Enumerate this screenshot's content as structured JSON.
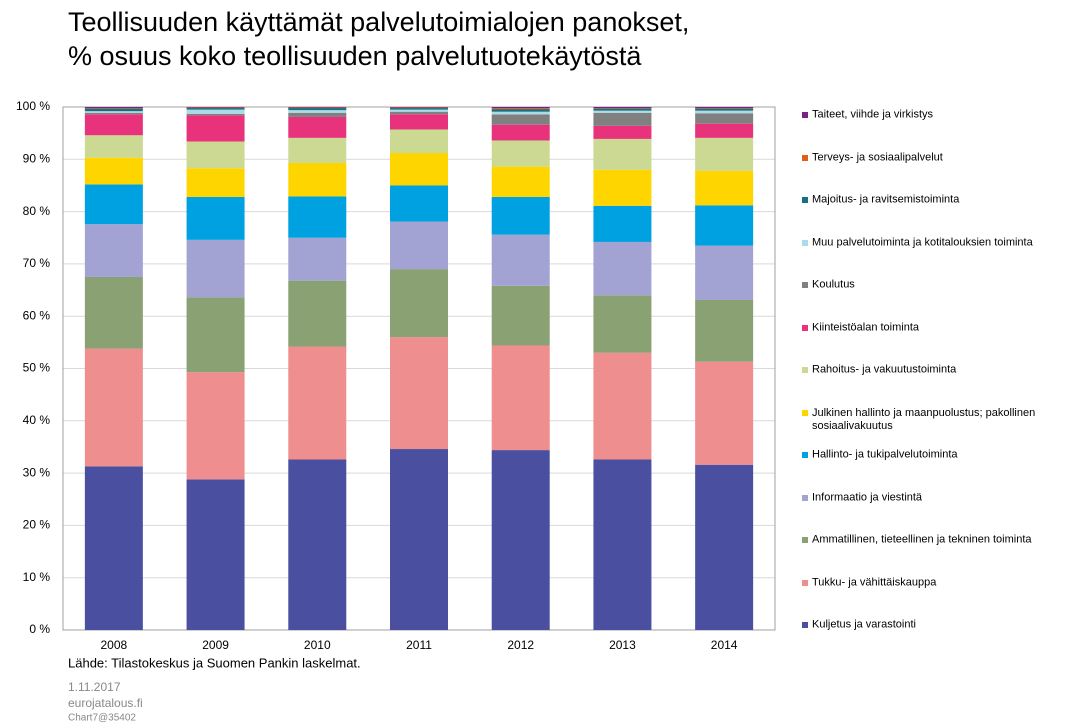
{
  "chart_data": {
    "type": "stacked_bar",
    "title": "Teollisuuden käyttämät palvelutoimialojen panokset,",
    "subtitle": "% osuus koko teollisuuden palvelutuotekäytöstä",
    "source": "Lähde: Tilastokeskus ja Suomen Pankin laskelmat.",
    "date": "1.11.2017",
    "site": "eurojatalous.fi",
    "chart_id": "Chart7@35402",
    "categories": [
      "2008",
      "2009",
      "2010",
      "2011",
      "2012",
      "2013",
      "2014"
    ],
    "ylim": [
      0,
      100
    ],
    "yticks": [
      {
        "value": 0,
        "label": "0 %"
      },
      {
        "value": 10,
        "label": "10 %"
      },
      {
        "value": 20,
        "label": "20 %"
      },
      {
        "value": 30,
        "label": "30 %"
      },
      {
        "value": 40,
        "label": "40 %"
      },
      {
        "value": 50,
        "label": "50 %"
      },
      {
        "value": 60,
        "label": "60 %"
      },
      {
        "value": 70,
        "label": "70 %"
      },
      {
        "value": 80,
        "label": "80 %"
      },
      {
        "value": 90,
        "label": "90 %"
      },
      {
        "value": 100,
        "label": "100 %"
      }
    ],
    "grid": true,
    "legend": "right",
    "series": [
      {
        "name": "Kuljetus ja varastointi",
        "color": "#4b4f9f",
        "values": [
          31.3,
          28.8,
          32.6,
          34.6,
          34.4,
          32.6,
          31.6
        ]
      },
      {
        "name": "Tukku- ja vähittäiskauppa",
        "color": "#ef8e8e",
        "values": [
          22.5,
          20.5,
          21.6,
          21.4,
          20.0,
          20.4,
          19.7
        ]
      },
      {
        "name": "Ammatillinen, tieteellinen ja tekninen toiminta",
        "color": "#8aa273",
        "values": [
          13.7,
          14.3,
          12.6,
          13.0,
          11.4,
          11.0,
          11.8
        ]
      },
      {
        "name": "Informaatio ja viestintä",
        "color": "#a2a3d3",
        "values": [
          10.1,
          11.0,
          8.2,
          9.1,
          9.8,
          10.2,
          10.4
        ]
      },
      {
        "name": "Hallinto- ja tukipalvelutoiminta",
        "color": "#00a1e0",
        "values": [
          7.6,
          8.2,
          7.9,
          6.9,
          7.2,
          6.9,
          7.7
        ]
      },
      {
        "name": "Julkinen hallinto ja maanpuolustus; pakollinen sosiaalivakuutus",
        "color": "#ffd500",
        "values": [
          5.1,
          5.5,
          6.4,
          6.2,
          5.8,
          6.9,
          6.6
        ]
      },
      {
        "name": "Rahoitus- ja vakuutustoiminta",
        "color": "#cbd992",
        "values": [
          4.3,
          5.1,
          4.8,
          4.5,
          5.0,
          5.9,
          6.3
        ]
      },
      {
        "name": "Kiinteistöalan toiminta",
        "color": "#e8337c",
        "values": [
          4.0,
          5.0,
          4.0,
          2.9,
          3.0,
          2.5,
          2.7
        ]
      },
      {
        "name": "Koulutus",
        "color": "#808080",
        "values": [
          0.3,
          0.3,
          0.8,
          0.5,
          2.0,
          2.5,
          2.0
        ]
      },
      {
        "name": "Muu palvelutoiminta ja kotitalouksien toiminta",
        "color": "#a9dbe8",
        "values": [
          0.3,
          0.8,
          0.5,
          0.4,
          0.5,
          0.4,
          0.5
        ]
      },
      {
        "name": "Majoitus- ja ravitsemistoiminta",
        "color": "#1a6f80",
        "values": [
          0.5,
          0.3,
          0.4,
          0.3,
          0.5,
          0.4,
          0.4
        ]
      },
      {
        "name": "Terveys- ja sosiaalipalvelut",
        "color": "#e0601a",
        "values": [
          0.1,
          0.1,
          0.1,
          0.1,
          0.2,
          0.1,
          0.1
        ]
      },
      {
        "name": "Taiteet, viihde ja virkistys",
        "color": "#7a2283",
        "values": [
          0.2,
          0.1,
          0.1,
          0.1,
          0.2,
          0.2,
          0.2
        ]
      }
    ]
  }
}
